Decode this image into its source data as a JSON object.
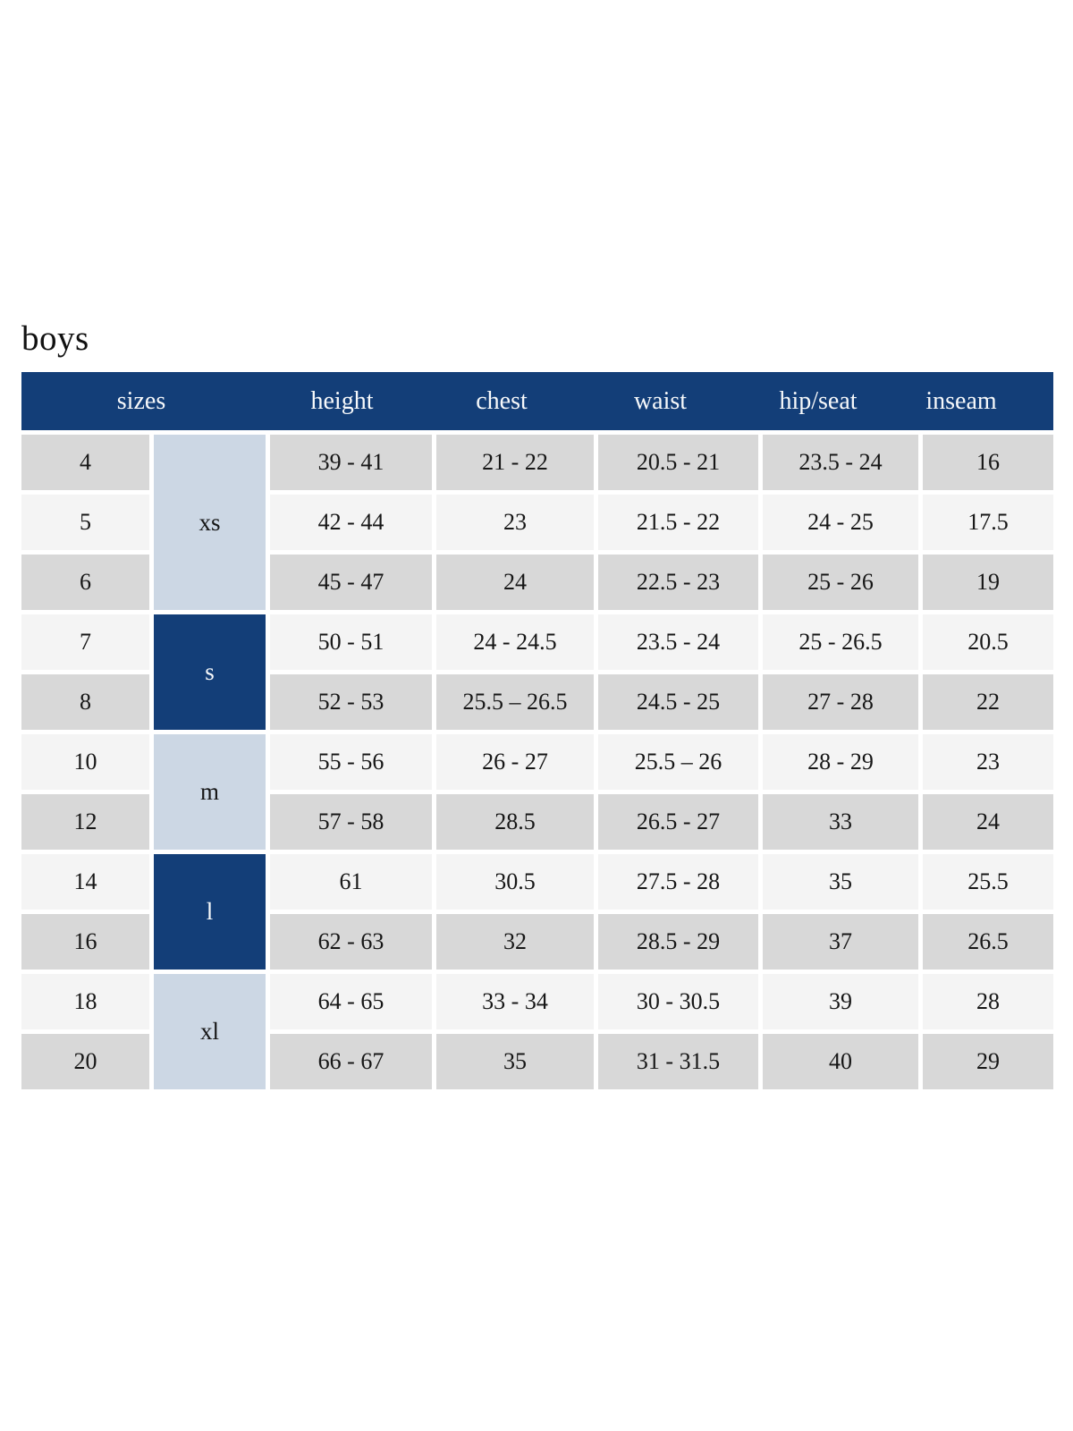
{
  "page": {
    "title": "boys"
  },
  "colors": {
    "header_bg": "#133e78",
    "group_dark_bg": "#133e78",
    "group_light_bg": "#ccd7e4",
    "row_dark_bg": "#d8d8d8",
    "row_light_bg": "#f4f4f4",
    "header_text": "#f7f9fb",
    "body_text": "#161616"
  },
  "table": {
    "header": {
      "sizes": "sizes",
      "height": "height",
      "chest": "chest",
      "waist": "waist",
      "hip_seat": "hip/seat",
      "inseam": "inseam"
    },
    "groups": [
      {
        "label": "xs",
        "rows_spanned": 3
      },
      {
        "label": "s",
        "rows_spanned": 2
      },
      {
        "label": "m",
        "rows_spanned": 2
      },
      {
        "label": "l",
        "rows_spanned": 2
      },
      {
        "label": "xl",
        "rows_spanned": 2
      }
    ],
    "rows": [
      {
        "size": "4",
        "height": "39 - 41",
        "chest": "21 - 22",
        "waist": "20.5 - 21",
        "hip_seat": "23.5 - 24",
        "inseam": "16"
      },
      {
        "size": "5",
        "height": "42 - 44",
        "chest": "23",
        "waist": "21.5 - 22",
        "hip_seat": "24 - 25",
        "inseam": "17.5"
      },
      {
        "size": "6",
        "height": "45 - 47",
        "chest": "24",
        "waist": "22.5 - 23",
        "hip_seat": "25 - 26",
        "inseam": "19"
      },
      {
        "size": "7",
        "height": "50 - 51",
        "chest": "24 - 24.5",
        "waist": "23.5 - 24",
        "hip_seat": "25 - 26.5",
        "inseam": "20.5"
      },
      {
        "size": "8",
        "height": "52 - 53",
        "chest": "25.5 – 26.5",
        "waist": "24.5 - 25",
        "hip_seat": "27 - 28",
        "inseam": "22"
      },
      {
        "size": "10",
        "height": "55 - 56",
        "chest": "26 - 27",
        "waist": "25.5 – 26",
        "hip_seat": "28 - 29",
        "inseam": "23"
      },
      {
        "size": "12",
        "height": "57 - 58",
        "chest": "28.5",
        "waist": "26.5 - 27",
        "hip_seat": "33",
        "inseam": "24"
      },
      {
        "size": "14",
        "height": "61",
        "chest": "30.5",
        "waist": "27.5 - 28",
        "hip_seat": "35",
        "inseam": "25.5"
      },
      {
        "size": "16",
        "height": "62 - 63",
        "chest": "32",
        "waist": "28.5 - 29",
        "hip_seat": "37",
        "inseam": "26.5"
      },
      {
        "size": "18",
        "height": "64 - 65",
        "chest": "33 - 34",
        "waist": "30 - 30.5",
        "hip_seat": "39",
        "inseam": "28"
      },
      {
        "size": "20",
        "height": "66 - 67",
        "chest": "35",
        "waist": "31 - 31.5",
        "hip_seat": "40",
        "inseam": "29"
      }
    ]
  }
}
